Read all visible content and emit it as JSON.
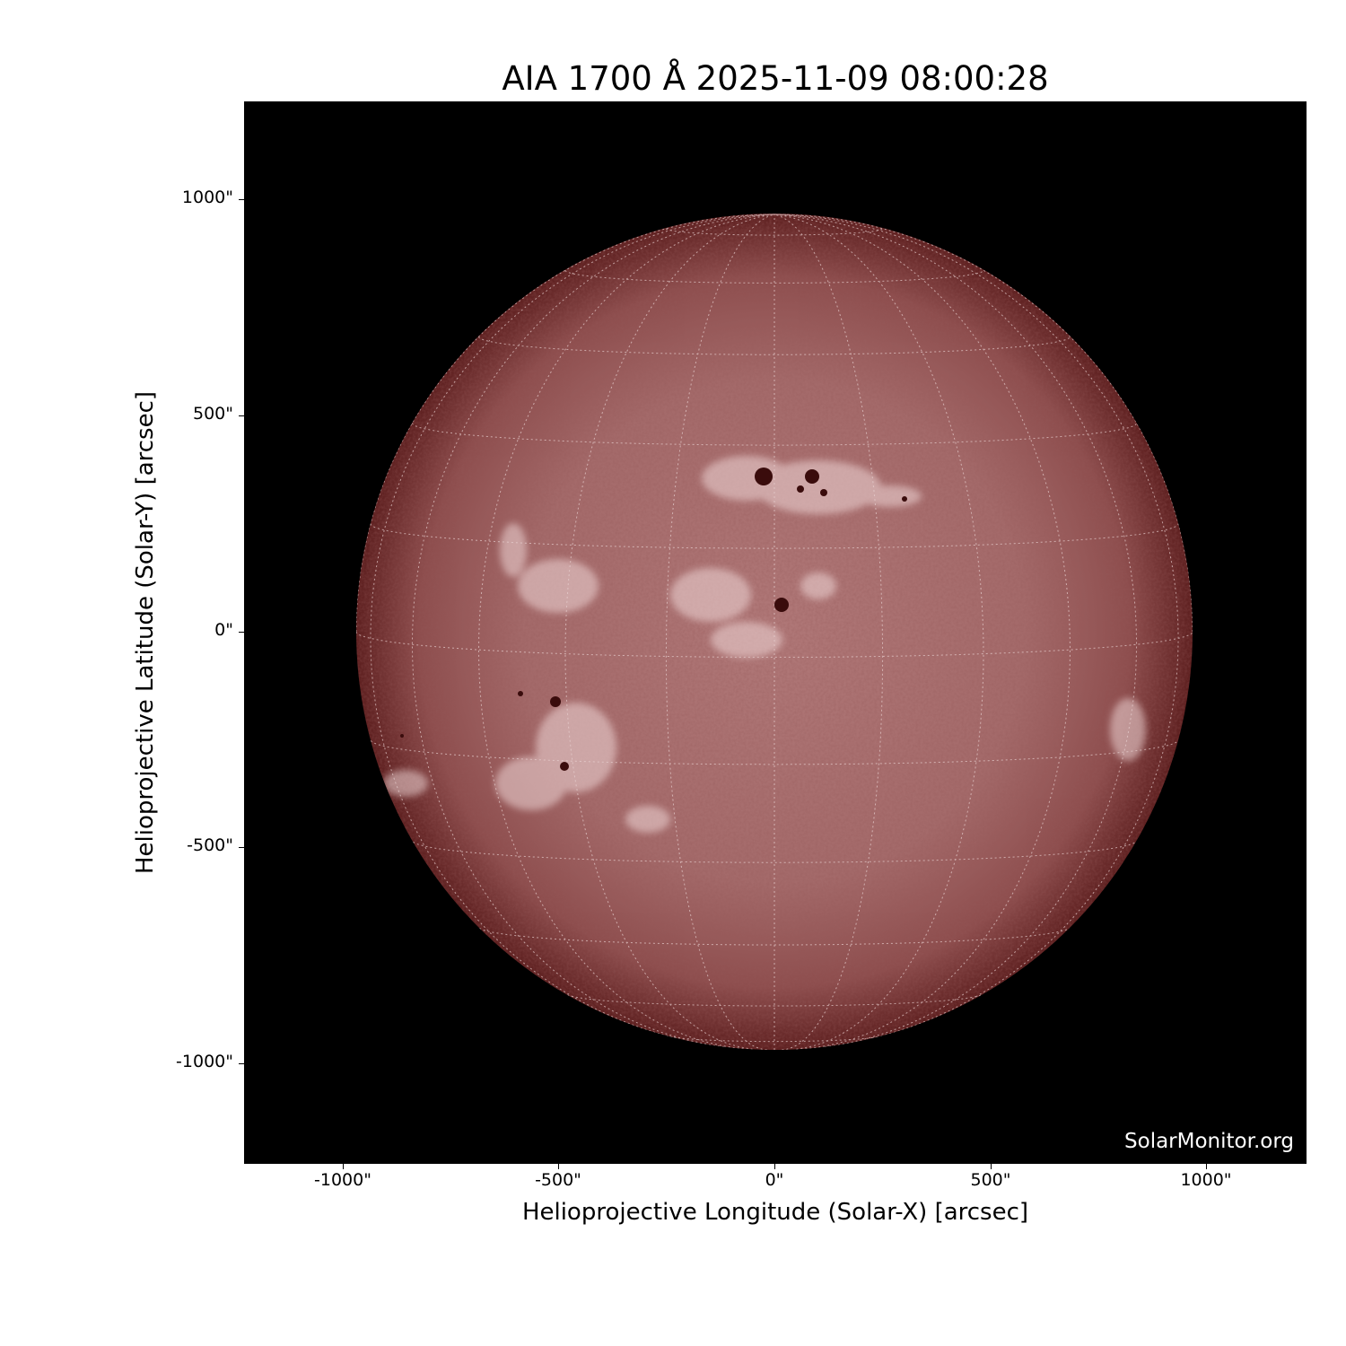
{
  "figure": {
    "title": "AIA 1700 Å 2025-11-09 08:00:28",
    "xlabel": "Helioprojective Longitude (Solar-X) [arcsec]",
    "ylabel": "Helioprojective Latitude (Solar-Y) [arcsec]",
    "x_ticks": [
      "-1000\"",
      "-500\"",
      "0\"",
      "500\"",
      "1000\""
    ],
    "y_ticks": [
      "1000\"",
      "500\"",
      "0\"",
      "-500\"",
      "-1000\""
    ],
    "watermark": "SolarMonitor.org",
    "colors": {
      "background": "#000000",
      "disk_center": "#b07878",
      "disk_limb": "#5e2020",
      "plage": "#f0d8d8",
      "sunspot": "#3a0c0c"
    }
  }
}
